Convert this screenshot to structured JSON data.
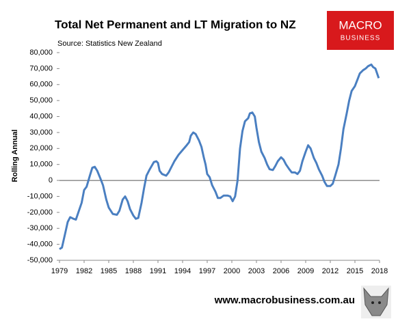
{
  "chart_data": {
    "type": "line",
    "title": "Total Net Permanent and LT Migration to NZ",
    "subtitle": "Source: Statistics New Zealand",
    "y_label": "Rolling Annual",
    "color": "#4a7fc1",
    "x": [
      1979.0,
      1979.3,
      1979.7,
      1980.0,
      1980.3,
      1980.7,
      1981.0,
      1981.3,
      1981.7,
      1982.0,
      1982.3,
      1982.7,
      1983.0,
      1983.3,
      1983.6,
      1984.0,
      1984.3,
      1984.7,
      1985.0,
      1985.5,
      1986.0,
      1986.3,
      1986.7,
      1987.0,
      1987.3,
      1987.6,
      1988.0,
      1988.3,
      1988.6,
      1989.0,
      1989.3,
      1989.6,
      1990.0,
      1990.5,
      1990.8,
      1991.0,
      1991.2,
      1991.5,
      1992.0,
      1992.3,
      1992.7,
      1993.0,
      1993.5,
      1994.0,
      1994.5,
      1994.8,
      1995.0,
      1995.3,
      1995.6,
      1996.0,
      1996.3,
      1996.6,
      1996.8,
      1997.0,
      1997.3,
      1997.6,
      1998.0,
      1998.3,
      1998.6,
      1999.0,
      1999.5,
      1999.8,
      2000.1,
      2000.4,
      2000.7,
      2001.0,
      2001.3,
      2001.6,
      2002.0,
      2002.2,
      2002.5,
      2002.8,
      2003.0,
      2003.3,
      2003.6,
      2004.0,
      2004.3,
      2004.6,
      2005.0,
      2005.3,
      2005.6,
      2006.0,
      2006.3,
      2006.6,
      2007.0,
      2007.3,
      2007.7,
      2008.0,
      2008.3,
      2008.6,
      2009.0,
      2009.3,
      2009.6,
      2010.0,
      2010.3,
      2010.6,
      2011.0,
      2011.3,
      2011.6,
      2012.0,
      2012.3,
      2012.6,
      2013.0,
      2013.3,
      2013.6,
      2014.0,
      2014.3,
      2014.6,
      2015.0,
      2015.3,
      2015.6,
      2016.0,
      2016.3,
      2016.6,
      2017.0,
      2017.2,
      2017.5,
      2017.7,
      2017.9
    ],
    "values": [
      -43000,
      -42000,
      -33000,
      -26000,
      -23000,
      -24000,
      -24500,
      -20000,
      -14000,
      -6000,
      -4000,
      3000,
      8000,
      8500,
      6000,
      1000,
      -3000,
      -12000,
      -17000,
      -21000,
      -21500,
      -19000,
      -12000,
      -10000,
      -13000,
      -18000,
      -22000,
      -24000,
      -23500,
      -14000,
      -5000,
      3000,
      7000,
      11500,
      12000,
      11000,
      6000,
      4000,
      3000,
      5000,
      9000,
      12000,
      16000,
      19000,
      22000,
      24000,
      28000,
      30000,
      29000,
      25000,
      21000,
      14000,
      10000,
      4000,
      2000,
      -3000,
      -7000,
      -11000,
      -11000,
      -9500,
      -9500,
      -10000,
      -13000,
      -10000,
      0,
      20000,
      31000,
      37000,
      39000,
      42000,
      42500,
      40000,
      33000,
      24000,
      18000,
      14000,
      10000,
      7000,
      6500,
      9000,
      12000,
      14500,
      13000,
      10000,
      7000,
      5000,
      5000,
      4000,
      6000,
      12000,
      18000,
      22000,
      20000,
      14000,
      11000,
      7000,
      3000,
      -1000,
      -3500,
      -3500,
      -2000,
      3000,
      10000,
      20000,
      32000,
      42000,
      50000,
      56000,
      59000,
      63000,
      67000,
      69000,
      70000,
      71500,
      72500,
      71000,
      70000,
      67000,
      64000
    ],
    "xlim": [
      1979,
      2018
    ],
    "xticks": [
      1979,
      1982,
      1985,
      1988,
      1991,
      1994,
      1997,
      2000,
      2003,
      2006,
      2009,
      2012,
      2015,
      2018
    ],
    "ylim": [
      -50000,
      80000
    ],
    "yticks": [
      {
        "value": 80000,
        "label": "80,000"
      },
      {
        "value": 70000,
        "label": "70,000"
      },
      {
        "value": 60000,
        "label": "60,000"
      },
      {
        "value": 50000,
        "label": "50,000"
      },
      {
        "value": 40000,
        "label": "40,000"
      },
      {
        "value": 30000,
        "label": "30,000"
      },
      {
        "value": 20000,
        "label": "20,000"
      },
      {
        "value": 10000,
        "label": "10,000"
      },
      0,
      {
        "value": -10000,
        "label": "-10,000"
      },
      {
        "value": -20000,
        "label": "-20,000"
      },
      {
        "value": -30000,
        "label": "-30,000"
      },
      {
        "value": -40000,
        "label": "-40,000"
      },
      {
        "value": -50000,
        "label": "-50,000"
      }
    ]
  },
  "logo": {
    "line1": "MACRO",
    "line2": "BUSINESS"
  },
  "footer": "www.macrobusiness.com.au"
}
